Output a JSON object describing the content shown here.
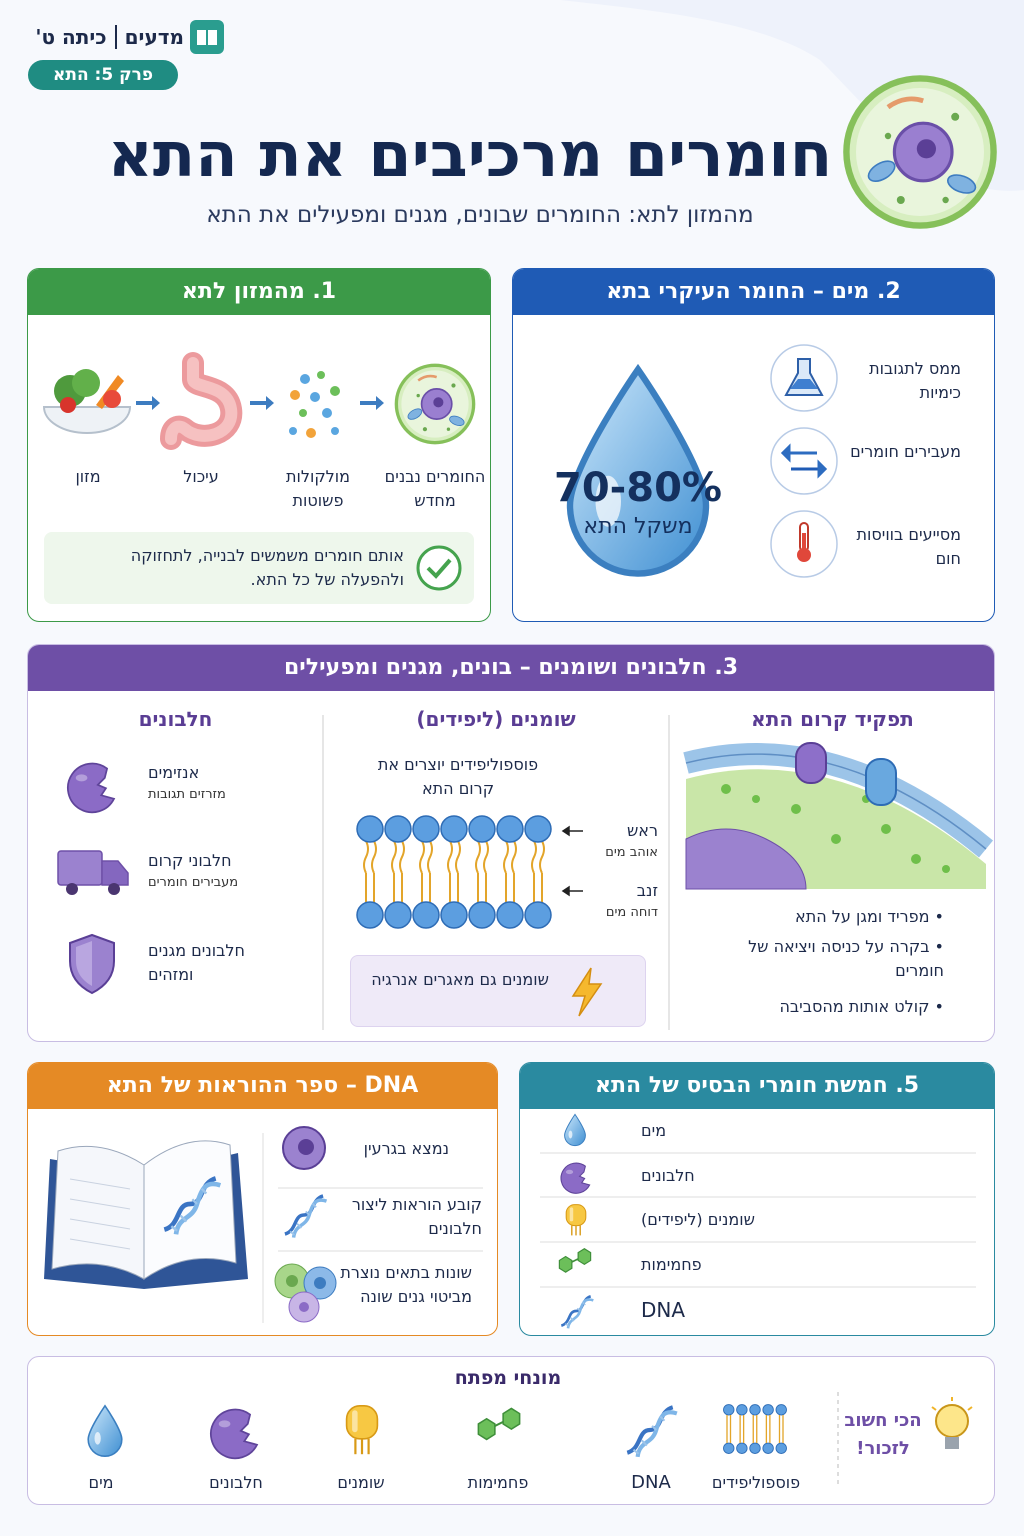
{
  "header": {
    "subject": "מדעים",
    "grade": "כיתה ט'",
    "chapter": "פרק 5: התא",
    "title": "חומרים מרכיבים את התא",
    "subtitle": "מהמזון לתא: החומרים שבונים, מגנים ומפעילים את התא"
  },
  "food_to_cell": {
    "title": "1. מהמזון לתא",
    "steps": [
      "מזון",
      "עיכול",
      "מולקולות פשוטות",
      "החומרים נבנים מחדש"
    ],
    "note": "אותם חומרים משמשים לבנייה, לתחזוקה ולהפעלה של כל התא."
  },
  "water": {
    "title": "2. מים – החומר העיקרי בתא",
    "percent": "70-80%",
    "percent_label": "משקל התא",
    "roles": [
      "ממס לתגובות כימיות",
      "מעבירים חומרים",
      "מסייעים בוויסות חום"
    ]
  },
  "proteins_lipids": {
    "title": "3. חלבונים ושומנים – בונים, מגנים ומפעילים",
    "membrane": {
      "title": "תפקיד קרום התא",
      "points": [
        "מפריד ומגן על התא",
        "בקרה על כניסה ויציאה של חומרים",
        "קולט אותות מהסביבה"
      ]
    },
    "lipids": {
      "title": "שומנים (ליפידים)",
      "text": "פוספוליפידים יוצרים את קרום התא",
      "head": "ראש",
      "head_note": "אוהב מים",
      "tail": "זנב",
      "tail_note": "דוחה מים",
      "note": "שומנים גם מאגרים אנרגיה"
    },
    "proteins": {
      "title": "חלבונים",
      "items": [
        {
          "name": "אנזימים",
          "description": "מזרזים תגובות"
        },
        {
          "name": "חלבוני קרום",
          "description": "מעבירים חומרים"
        },
        {
          "name": "חלבונים מגנים",
          "description": "ומזהים"
        }
      ]
    }
  },
  "dna": {
    "title": "DNA – ספר ההוראות של התא",
    "facts": [
      "נמצא בגרעין",
      "קובע הוראות ליצור חלבונים",
      "שונות בתאים נוצרת מביטוי גנים שונה"
    ]
  },
  "five_basics": {
    "title": "5. חמשת חומרי הבסיס של התא",
    "items": [
      "מים",
      "חלבונים",
      "שומנים (ליפידים)",
      "פחמימות",
      "DNA"
    ]
  },
  "key_terms": {
    "title": "מונחי מפתח",
    "reminder": "הכי חשוב לזכור!",
    "terms": [
      "פוספוליפידים",
      "DNA",
      "פחמימות",
      "שומנים",
      "חלבונים",
      "מים"
    ]
  }
}
